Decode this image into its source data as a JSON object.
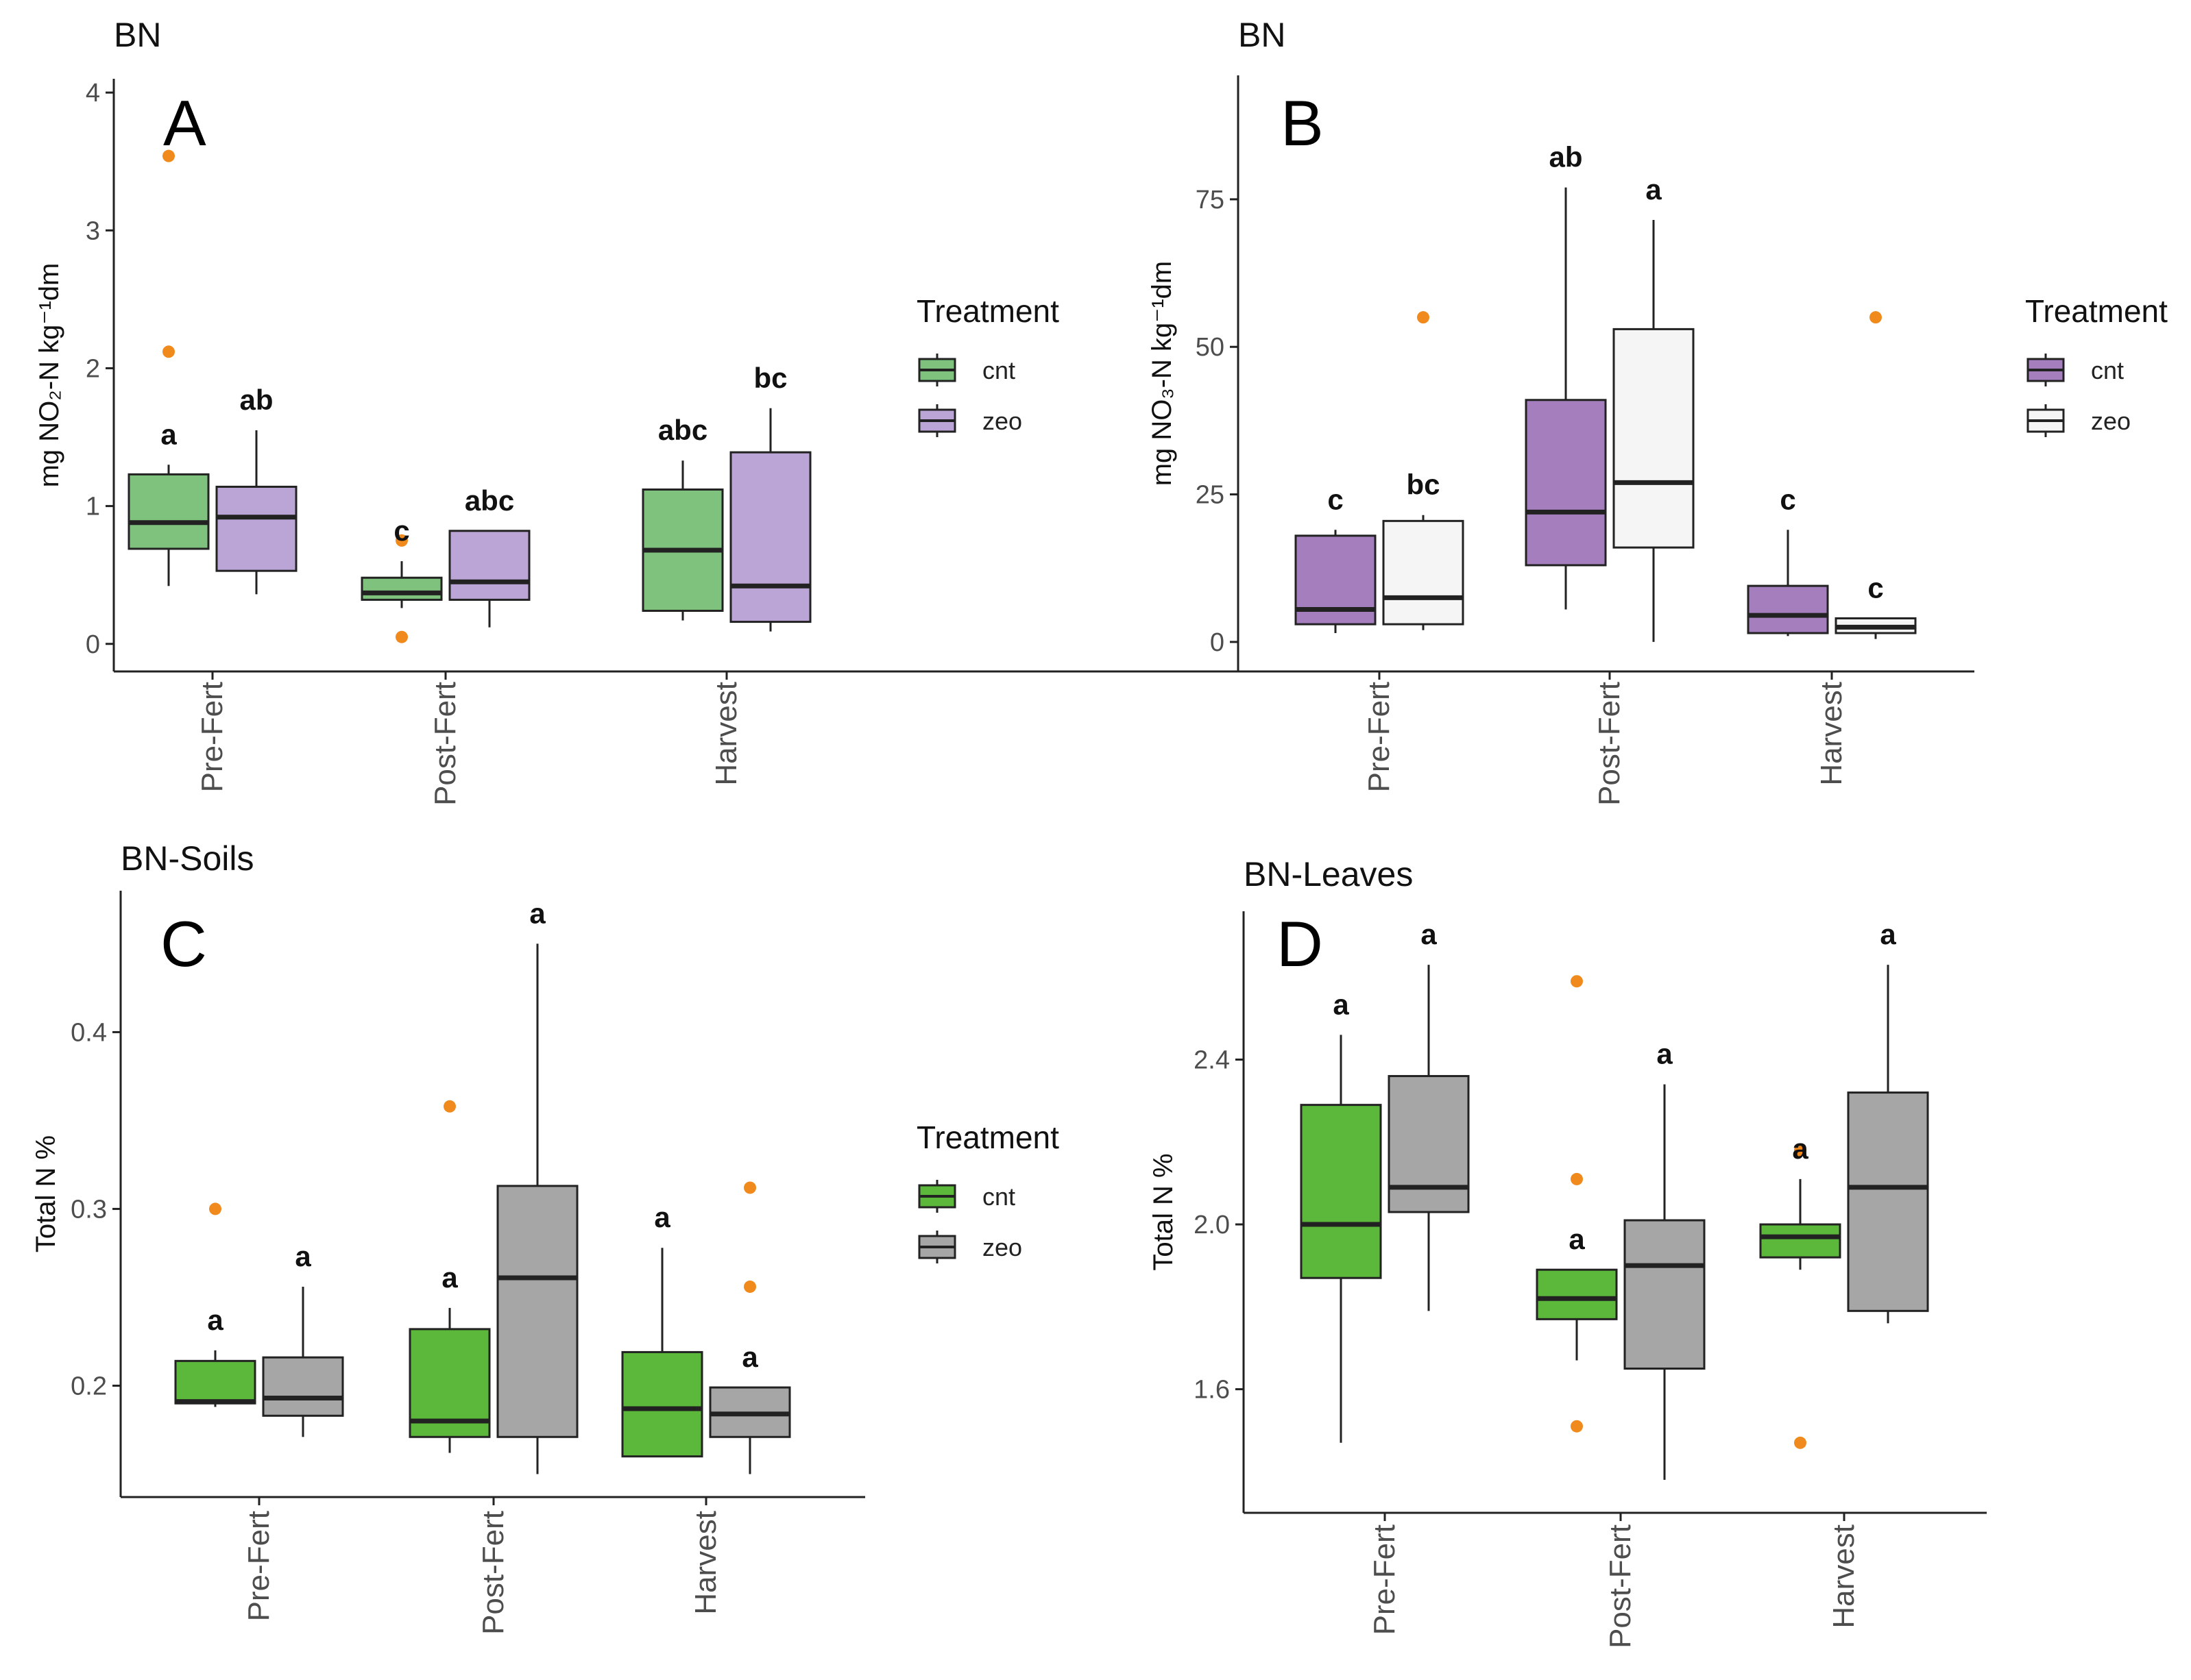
{
  "chart_data": [
    {
      "type": "box",
      "letter": "A",
      "title": "BN",
      "ylabel": "mg NO₂-N kg⁻¹dm",
      "ylim": [
        -0.2,
        4.1
      ],
      "yticks": [
        "0",
        "1",
        "2",
        "3",
        "4"
      ],
      "categories": [
        "Pre-Fert",
        "Post-Fert",
        "Harvest"
      ],
      "legend": {
        "title": "Treatment",
        "entries": [
          "cnt",
          "zeo"
        ]
      },
      "series": [
        {
          "name": "cnt",
          "color": "#7ec27e",
          "boxes": [
            {
              "min": 0.42,
              "q1": 0.69,
              "median": 0.88,
              "q3": 1.23,
              "max": 1.3,
              "outliers": [
                2.12,
                3.54
              ],
              "sig": "a"
            },
            {
              "min": 0.26,
              "q1": 0.32,
              "median": 0.37,
              "q3": 0.48,
              "max": 0.6,
              "outliers": [
                0.75,
                0.05
              ],
              "sig": "c"
            },
            {
              "min": 0.17,
              "q1": 0.24,
              "median": 0.68,
              "q3": 1.12,
              "max": 1.33,
              "outliers": [],
              "sig": "abc"
            }
          ]
        },
        {
          "name": "zeo",
          "color": "#bba5d7",
          "boxes": [
            {
              "min": 0.36,
              "q1": 0.53,
              "median": 0.92,
              "q3": 1.14,
              "max": 1.55,
              "outliers": [],
              "sig": "ab"
            },
            {
              "min": 0.12,
              "q1": 0.32,
              "median": 0.45,
              "q3": 0.82,
              "max": 0.82,
              "outliers": [],
              "sig": "abc"
            },
            {
              "min": 0.09,
              "q1": 0.16,
              "median": 0.42,
              "q3": 1.39,
              "max": 1.71,
              "outliers": [],
              "sig": "bc"
            }
          ]
        }
      ]
    },
    {
      "type": "box",
      "letter": "B",
      "title": "BN",
      "ylabel": "mg NO₃-N kg⁻¹dm",
      "ylim": [
        -5,
        96
      ],
      "yticks": [
        "0",
        "25",
        "50",
        "75"
      ],
      "categories": [
        "Pre-Fert",
        "Post-Fert",
        "Harvest"
      ],
      "legend": {
        "title": "Treatment",
        "entries": [
          "cnt",
          "zeo"
        ]
      },
      "series": [
        {
          "name": "cnt",
          "color": "#a57fbd",
          "boxes": [
            {
              "min": 1.5,
              "q1": 3,
              "median": 5.5,
              "q3": 18,
              "max": 19,
              "outliers": [],
              "sig": "c"
            },
            {
              "min": 5.5,
              "q1": 13,
              "median": 22,
              "q3": 41,
              "max": 77,
              "outliers": [],
              "sig": "ab"
            },
            {
              "min": 1,
              "q1": 1.5,
              "median": 4.5,
              "q3": 9.5,
              "max": 19,
              "outliers": [],
              "sig": "c"
            }
          ]
        },
        {
          "name": "zeo",
          "color": "#f5f5f5",
          "boxes": [
            {
              "min": 2,
              "q1": 3,
              "median": 7.5,
              "q3": 20.5,
              "max": 21.5,
              "outliers": [
                55
              ],
              "sig": "bc"
            },
            {
              "min": 0,
              "q1": 16,
              "median": 27,
              "q3": 53,
              "max": 71.5,
              "outliers": [],
              "sig": "a"
            },
            {
              "min": 0.5,
              "q1": 1.5,
              "median": 2.5,
              "q3": 4,
              "max": 4,
              "outliers": [
                55
              ],
              "sig": "c"
            }
          ]
        }
      ]
    },
    {
      "type": "box",
      "letter": "C",
      "title": "BN-Soils",
      "ylabel": "Total N %",
      "ylim": [
        0.137,
        0.48
      ],
      "yticks": [
        "0.2",
        "0.3",
        "0.4"
      ],
      "categories": [
        "Pre-Fert",
        "Post-Fert",
        "Harvest"
      ],
      "legend": {
        "title": "Treatment",
        "entries": [
          "cnt",
          "zeo"
        ]
      },
      "series": [
        {
          "name": "cnt",
          "color": "#5cb83a",
          "boxes": [
            {
              "min": 0.188,
              "q1": 0.19,
              "median": 0.191,
              "q3": 0.214,
              "max": 0.22,
              "outliers": [
                0.3
              ],
              "sig": "a"
            },
            {
              "min": 0.162,
              "q1": 0.171,
              "median": 0.18,
              "q3": 0.232,
              "max": 0.244,
              "outliers": [
                0.358
              ],
              "sig": "a"
            },
            {
              "min": 0.16,
              "q1": 0.16,
              "median": 0.187,
              "q3": 0.219,
              "max": 0.278,
              "outliers": [],
              "sig": "a"
            }
          ]
        },
        {
          "name": "zeo",
          "color": "#a6a6a6",
          "boxes": [
            {
              "min": 0.171,
              "q1": 0.183,
              "median": 0.193,
              "q3": 0.216,
              "max": 0.256,
              "outliers": [],
              "sig": "a"
            },
            {
              "min": 0.15,
              "q1": 0.171,
              "median": 0.261,
              "q3": 0.313,
              "max": 0.45,
              "outliers": [],
              "sig": "a"
            },
            {
              "min": 0.15,
              "q1": 0.171,
              "median": 0.184,
              "q3": 0.199,
              "max": 0.199,
              "outliers": [
                0.312,
                0.256
              ],
              "sig": "a"
            }
          ]
        }
      ]
    },
    {
      "type": "box",
      "letter": "D",
      "title": "BN-Leaves",
      "ylabel": "Total N %",
      "ylim": [
        1.3,
        2.76
      ],
      "yticks": [
        "1.6",
        "2.0",
        "2.4"
      ],
      "categories": [
        "Pre-Fert",
        "Post-Fert",
        "Harvest"
      ],
      "legend": {
        "title": "",
        "entries": []
      },
      "series": [
        {
          "name": "cnt",
          "color": "#5cb83a",
          "boxes": [
            {
              "min": 1.47,
              "q1": 1.87,
              "median": 2.0,
              "q3": 2.29,
              "max": 2.46,
              "outliers": [],
              "sig": "a"
            },
            {
              "min": 1.67,
              "q1": 1.77,
              "median": 1.82,
              "q3": 1.89,
              "max": 1.89,
              "outliers": [
                2.59,
                2.11,
                1.51
              ],
              "sig": "a"
            },
            {
              "min": 1.89,
              "q1": 1.92,
              "median": 1.97,
              "q3": 2.0,
              "max": 2.11,
              "outliers": [
                2.18,
                1.47
              ],
              "sig": "a"
            }
          ]
        },
        {
          "name": "zeo",
          "color": "#a6a6a6",
          "boxes": [
            {
              "min": 1.79,
              "q1": 2.03,
              "median": 2.09,
              "q3": 2.36,
              "max": 2.63,
              "outliers": [],
              "sig": "a"
            },
            {
              "min": 1.38,
              "q1": 1.65,
              "median": 1.9,
              "q3": 2.01,
              "max": 2.34,
              "outliers": [],
              "sig": "a"
            },
            {
              "min": 1.76,
              "q1": 1.79,
              "median": 2.09,
              "q3": 2.32,
              "max": 2.63,
              "outliers": [],
              "sig": "a"
            }
          ]
        }
      ]
    }
  ]
}
